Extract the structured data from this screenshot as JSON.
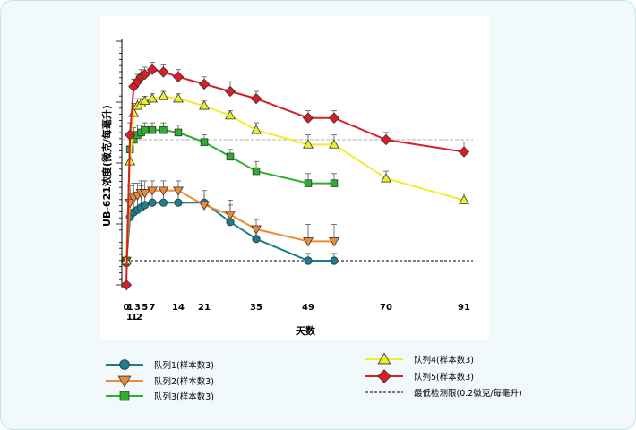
{
  "chart_data": {
    "type": "line",
    "title": "",
    "xlabel": "天数",
    "ylabel": "UB-621浓度(微克/每毫升)",
    "ylim": [
      0,
      100
    ],
    "xlim": [
      0,
      91
    ],
    "yscale": "relative (log concentration, no tick labels)",
    "x_tick_labels": [
      {
        "x": 0,
        "label": "0"
      },
      {
        "x": 1,
        "label": "1"
      },
      {
        "x": 3,
        "label": "3"
      },
      {
        "x": 5,
        "label": "5"
      },
      {
        "x": 7,
        "label": "7"
      },
      {
        "x": 14,
        "label": "14"
      },
      {
        "x": 21,
        "label": "21"
      },
      {
        "x": 35,
        "label": "35"
      },
      {
        "x": 49,
        "label": "49"
      },
      {
        "x": 70,
        "label": "70"
      },
      {
        "x": 91,
        "label": "91"
      }
    ],
    "x_tick_labels_row2": [
      {
        "x": 1,
        "label": "1"
      },
      {
        "x": 2,
        "label": "1"
      },
      {
        "x": 3,
        "label": "2"
      }
    ],
    "series": [
      {
        "name": "队列1(样本数3)",
        "color": "#1b7e8a",
        "marker": "circle",
        "x": [
          0,
          1,
          2,
          3,
          4,
          5,
          7,
          10,
          14,
          21,
          28,
          35,
          49,
          56
        ],
        "y": [
          9,
          28,
          30,
          31,
          32,
          33,
          34,
          34,
          34,
          34,
          26,
          19,
          10,
          10
        ],
        "err": [
          0,
          6,
          8,
          7,
          9,
          6,
          6,
          6,
          6,
          5,
          7,
          4,
          3,
          3
        ]
      },
      {
        "name": "队列2(样本数3)",
        "color": "#f08a33",
        "marker": "triangle-down",
        "x": [
          0,
          1,
          2,
          3,
          4,
          5,
          7,
          10,
          14,
          21,
          28,
          35,
          49,
          56
        ],
        "y": [
          10,
          34,
          36,
          37,
          38,
          38,
          39,
          39,
          39,
          33,
          29,
          23,
          18,
          18
        ],
        "err": [
          0,
          7,
          6,
          5,
          5,
          5,
          4,
          4,
          4,
          5,
          6,
          4,
          7,
          7
        ]
      },
      {
        "name": "队列3(样本数3)",
        "color": "#2faf2f",
        "marker": "square",
        "x": [
          0,
          1,
          2,
          3,
          4,
          5,
          7,
          10,
          14,
          21,
          28,
          35,
          49,
          56
        ],
        "y": [
          10,
          56,
          60,
          62,
          63,
          64,
          64,
          64,
          63,
          59,
          53,
          47,
          42,
          42
        ],
        "err": [
          0,
          6,
          5,
          4,
          3,
          3,
          3,
          3,
          3,
          3,
          3,
          4,
          4,
          4
        ]
      },
      {
        "name": "队列4(样本数3)",
        "color": "#f0ee2a",
        "marker": "triangle-up",
        "x": [
          0,
          1,
          2,
          3,
          4,
          5,
          7,
          10,
          14,
          21,
          28,
          35,
          49,
          56,
          70,
          91
        ],
        "y": [
          10,
          51,
          71,
          74,
          75,
          76,
          77,
          78,
          77,
          74,
          70,
          64,
          58,
          58,
          44,
          35
        ],
        "err": [
          0,
          6,
          4,
          3,
          2,
          2,
          2,
          2,
          2,
          2,
          2,
          3,
          4,
          4,
          3,
          3
        ]
      },
      {
        "name": "队列5(样本数3)",
        "color": "#d81f26",
        "marker": "diamond",
        "x": [
          0,
          1,
          2,
          3,
          4,
          5,
          7,
          10,
          14,
          21,
          28,
          35,
          49,
          56,
          70,
          91
        ],
        "y": [
          0,
          62,
          82,
          84,
          86,
          87,
          89,
          88,
          86,
          83,
          80,
          77,
          69,
          69,
          60,
          55
        ],
        "err": [
          0,
          5,
          3,
          3,
          3,
          3,
          3,
          3,
          3,
          3,
          4,
          3,
          3,
          3,
          3,
          4
        ]
      }
    ],
    "reference_lines": [
      {
        "name": "最低检测限(0.2微克/每毫升)",
        "y": 10,
        "style": "dashed",
        "color": "#000000"
      },
      {
        "name": "",
        "y": 60,
        "style": "dashed",
        "color": "#b0b0b0"
      }
    ],
    "legend_left": [
      "队列1(样本数3)",
      "队列2(样本数3)",
      "队列3(样本数3)"
    ],
    "legend_right": [
      "队列4(样本数3)",
      "队列5(样本数3)",
      "最低检测限(0.2微克/每毫升)"
    ]
  }
}
